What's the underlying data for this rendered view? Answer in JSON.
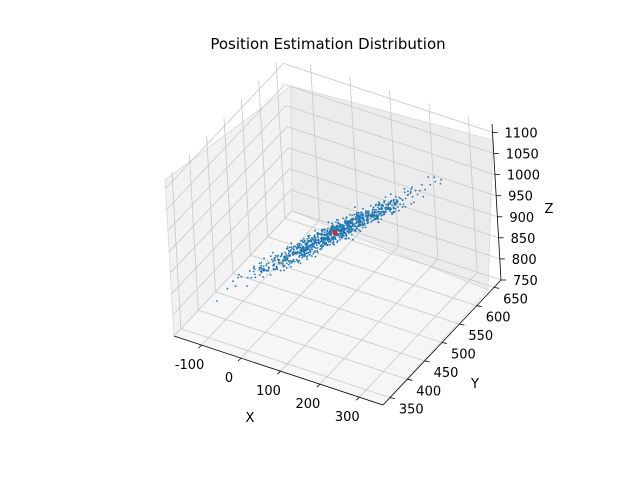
{
  "chart_data": {
    "type": "scatter",
    "dimensions": 3,
    "title": "Position Estimation Distribution",
    "xlabel": "X",
    "ylabel": "Y",
    "zlabel": "Z",
    "x_ticks": [
      -100,
      0,
      100,
      200,
      300
    ],
    "y_ticks": [
      350,
      400,
      450,
      500,
      550,
      600,
      650
    ],
    "z_ticks": [
      750,
      800,
      850,
      900,
      950,
      1000,
      1050,
      1100
    ],
    "xlim": [
      -170,
      360
    ],
    "ylim": [
      330,
      670
    ],
    "zlim": [
      750,
      1120
    ],
    "grid": true,
    "series": [
      {
        "color": "#1f77b4",
        "marker": "dot",
        "n_points": 1000,
        "distribution": {
          "x_range": [
            -150,
            340
          ],
          "mean": [
            100,
            500,
            930
          ],
          "trend": "points lie along a diagonal band: larger X goes with larger Y and larger Z"
        }
      },
      {
        "color": "#d62728",
        "marker": "dot",
        "points": [
          [
            100,
            500,
            930
          ]
        ]
      }
    ]
  }
}
